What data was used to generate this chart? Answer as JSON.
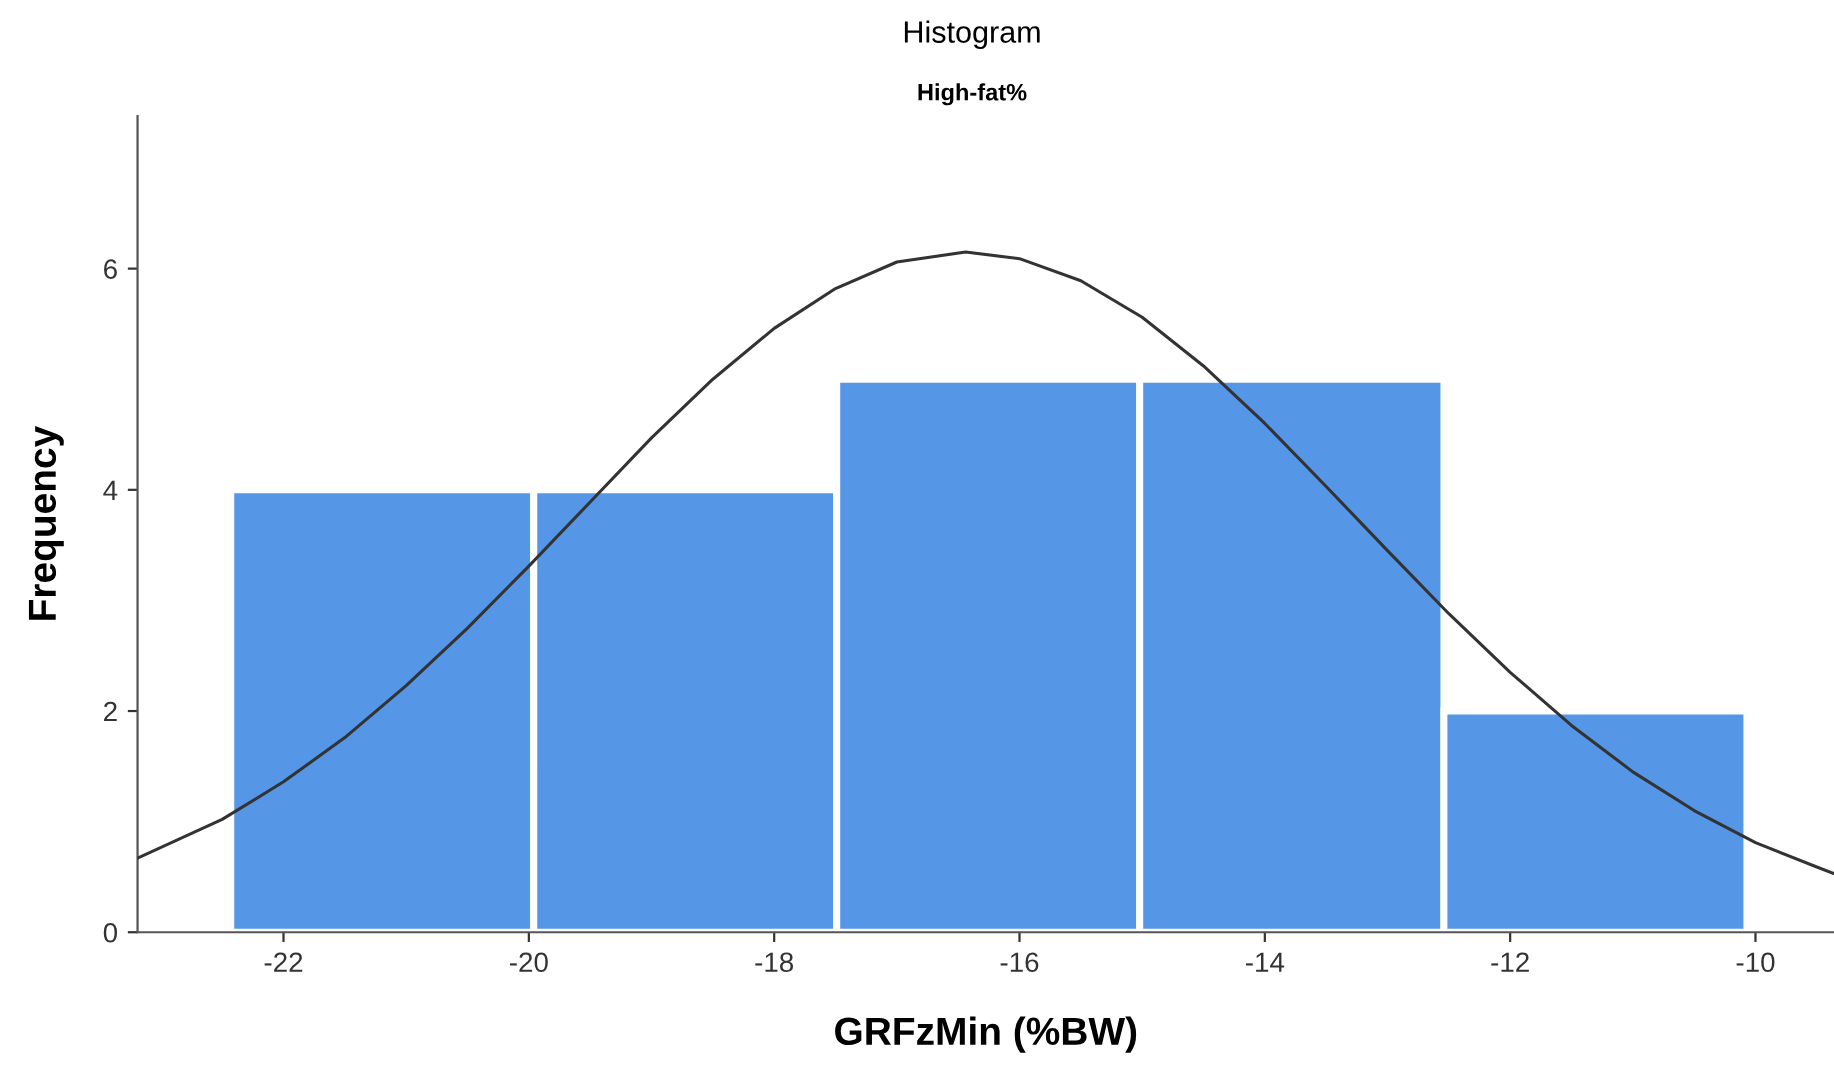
{
  "chart_data": {
    "type": "histogram",
    "title": "Histogram",
    "subtitle": "High-fat%",
    "xlabel": "GRFzMin (%BW)",
    "ylabel": "Frequency",
    "bins": [
      -22.43,
      -19.96,
      -17.49,
      -15.02,
      -12.54,
      -10.07
    ],
    "values": [
      4,
      4,
      5,
      5,
      2
    ],
    "color": "#5596e6",
    "series": [
      {
        "type": "line",
        "color": "#333333",
        "x": [
          -23.19,
          -22.5,
          -22,
          -21.5,
          -21,
          -20.5,
          -20,
          -19.5,
          -19,
          -18.5,
          -18,
          -17.5,
          -17,
          -16.44,
          -16,
          -15.5,
          -15,
          -14.5,
          -14,
          -13.5,
          -13,
          -12.5,
          -12,
          -11.5,
          -11,
          -10.5,
          -10,
          -9.5,
          -9.36
        ],
        "values": [
          0.67,
          1.02,
          1.36,
          1.76,
          2.23,
          2.75,
          3.31,
          3.89,
          4.47,
          5.0,
          5.46,
          5.82,
          6.06,
          6.15,
          6.09,
          5.89,
          5.56,
          5.12,
          4.6,
          4.03,
          3.45,
          2.88,
          2.35,
          1.87,
          1.45,
          1.1,
          0.81,
          0.59,
          0.53
        ]
      }
    ],
    "xlim": [
      -23.19,
      -9.36
    ],
    "xticks": [
      -22,
      -20,
      -18,
      -16,
      -14,
      -12,
      -10
    ],
    "ylim": [
      0,
      7.38
    ],
    "yticks": [
      0,
      2,
      4,
      6
    ],
    "grid": false,
    "legend": false
  }
}
